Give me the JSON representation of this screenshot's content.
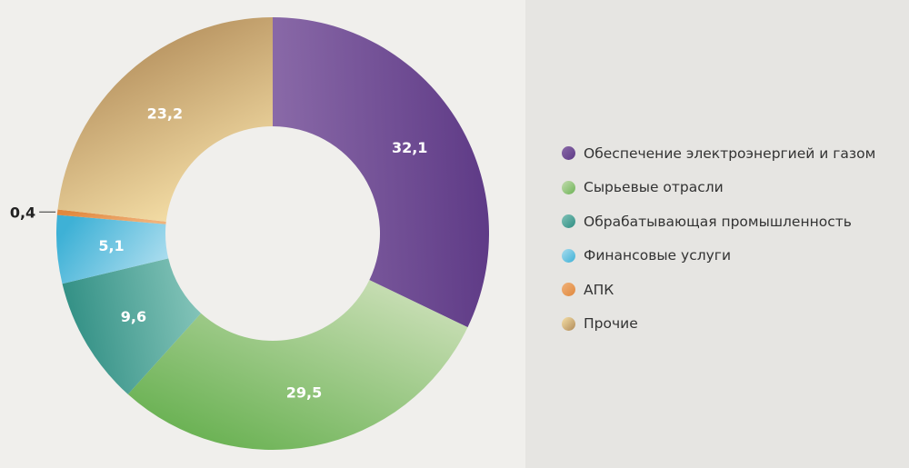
{
  "chart_data": {
    "type": "pie",
    "variant": "donut",
    "series": [
      {
        "name": "Обеспечение электроэнергией и газом",
        "value": 32.1,
        "label": "32,1",
        "color": "#5e3a86"
      },
      {
        "name": "Сырьевые отрасли",
        "value": 29.5,
        "label": "29,5",
        "color": "#6db356"
      },
      {
        "name": "Обрабатывающая промышленность",
        "value": 9.6,
        "label": "9,6",
        "color": "#2e8d82"
      },
      {
        "name": "Финансовые услуги",
        "value": 5.1,
        "label": "5,1",
        "color": "#3eb1d6"
      },
      {
        "name": "АПК",
        "value": 0.4,
        "label": "0,4",
        "color": "#e0883e"
      },
      {
        "name": "Прочие",
        "value": 23.2,
        "label": "23,2",
        "color": "#b08a58"
      }
    ],
    "legend_position": "right"
  }
}
